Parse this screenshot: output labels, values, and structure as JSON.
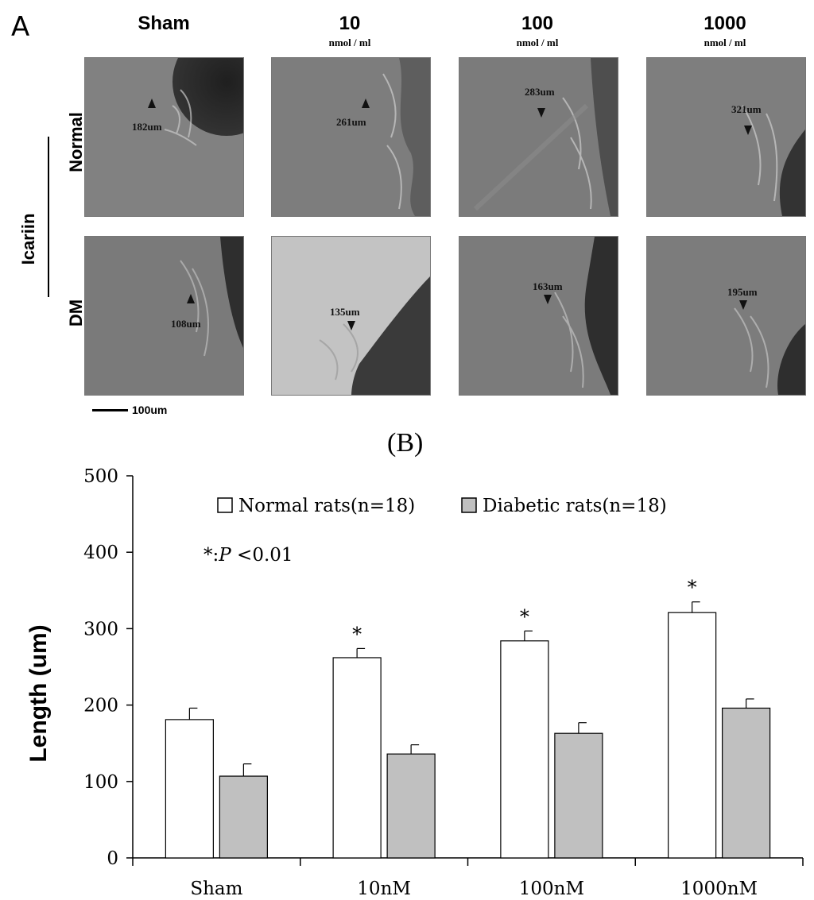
{
  "panel_a": {
    "letter": "A",
    "columns": [
      {
        "title": "Sham",
        "unit": ""
      },
      {
        "title": "10",
        "unit": "nmol / ml"
      },
      {
        "title": "100",
        "unit": "nmol / ml"
      },
      {
        "title": "1000",
        "unit": "nmol / ml"
      }
    ],
    "group_label": "Icariin",
    "rows": [
      "Normal",
      "DM"
    ],
    "measurements": {
      "normal": [
        "182um",
        "261um",
        "283um",
        "321um"
      ],
      "dm": [
        "108um",
        "135um",
        "163um",
        "195um"
      ]
    },
    "scale_bar": "100um"
  },
  "panel_b_label": "(B)",
  "chart_data": {
    "type": "bar",
    "ylabel": "Length (um)",
    "ylim": [
      0,
      500
    ],
    "yticks": [
      "0",
      "100",
      "200",
      "300",
      "400",
      "500"
    ],
    "categories": [
      "Sham",
      "10nM",
      "100nM",
      "1000nM"
    ],
    "series": [
      {
        "name": "Normal rats(n=18)",
        "color": "#ffffff",
        "values": [
          181,
          262,
          284,
          321
        ],
        "errors": [
          15,
          12,
          13,
          14
        ]
      },
      {
        "name": "Diabetic rats(n=18)",
        "color": "#c0c0c0",
        "values": [
          107,
          136,
          163,
          196
        ],
        "errors": [
          16,
          12,
          14,
          12
        ]
      }
    ],
    "significance_marks": [
      "",
      "*",
      "*",
      "*"
    ],
    "annotation_prefix": "*:",
    "annotation_p": "P",
    "annotation_suffix": " <0.01"
  }
}
